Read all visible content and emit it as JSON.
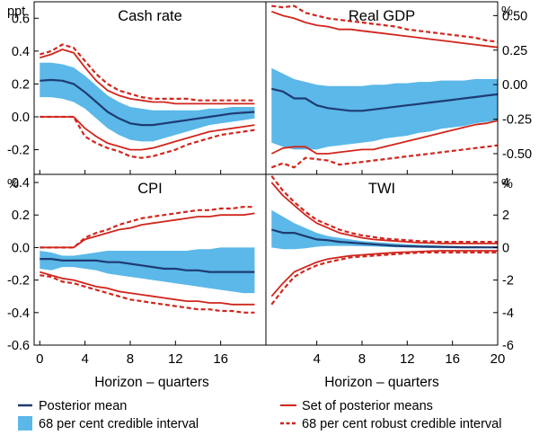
{
  "colors": {
    "posterior_mean": "#1f3b73",
    "credible_fill": "#5bb8e8",
    "posterior_means_set": "#d0261d",
    "robust_interval": "#d0261d",
    "axis": "#000000"
  },
  "xlabel": "Horizon – quarters",
  "legend": {
    "posterior_mean": "Posterior mean",
    "credible_interval": "68 per cent credible interval",
    "posterior_means_set": "Set of posterior means",
    "robust_interval": "68 per cent robust credible interval"
  },
  "chart_data": [
    {
      "type": "line",
      "title": "Cash rate",
      "unit": "ppt",
      "unit_side": "left",
      "ylim": [
        -0.35,
        0.7
      ],
      "yticks": [
        -0.2,
        0.0,
        0.2,
        0.4,
        0.6
      ],
      "yticklabels": [
        "-0.2",
        "0.0",
        "0.2",
        "0.4",
        "0.6"
      ],
      "xlim": [
        -0.5,
        20
      ],
      "xticks": [
        0,
        4,
        8,
        12,
        16
      ],
      "xticklabels": [],
      "x": [
        0,
        1,
        2,
        3,
        4,
        5,
        6,
        7,
        8,
        9,
        10,
        11,
        12,
        13,
        14,
        15,
        16,
        17,
        18,
        19
      ],
      "series": [
        {
          "role": "posterior_mean",
          "name": "Posterior mean",
          "values": [
            0.22,
            0.225,
            0.22,
            0.2,
            0.15,
            0.09,
            0.03,
            -0.01,
            -0.04,
            -0.05,
            -0.05,
            -0.04,
            -0.03,
            -0.02,
            -0.01,
            0.0,
            0.01,
            0.02,
            0.025,
            0.03
          ]
        },
        {
          "role": "credible_upper",
          "name": "68 per cent credible interval",
          "values": [
            0.33,
            0.33,
            0.32,
            0.3,
            0.25,
            0.19,
            0.13,
            0.09,
            0.06,
            0.05,
            0.04,
            0.04,
            0.04,
            0.04,
            0.04,
            0.05,
            0.05,
            0.06,
            0.06,
            0.06
          ]
        },
        {
          "role": "credible_lower",
          "values": [
            0.12,
            0.12,
            0.11,
            0.09,
            0.05,
            -0.01,
            -0.07,
            -0.11,
            -0.14,
            -0.15,
            -0.15,
            -0.13,
            -0.11,
            -0.09,
            -0.07,
            -0.05,
            -0.04,
            -0.03,
            -0.02,
            -0.01
          ]
        },
        {
          "role": "means_upper",
          "name": "Set of posterior means",
          "values": [
            0.36,
            0.38,
            0.41,
            0.39,
            0.3,
            0.22,
            0.16,
            0.13,
            0.11,
            0.1,
            0.09,
            0.09,
            0.08,
            0.08,
            0.08,
            0.08,
            0.08,
            0.08,
            0.08,
            0.08
          ]
        },
        {
          "role": "means_lower",
          "values": [
            0.0,
            0.0,
            0.0,
            0.0,
            -0.07,
            -0.12,
            -0.16,
            -0.18,
            -0.2,
            -0.2,
            -0.19,
            -0.17,
            -0.15,
            -0.13,
            -0.11,
            -0.09,
            -0.08,
            -0.07,
            -0.06,
            -0.05
          ]
        },
        {
          "role": "robust_upper",
          "name": "68 per cent robust credible interval",
          "values": [
            0.38,
            0.4,
            0.44,
            0.42,
            0.34,
            0.26,
            0.2,
            0.16,
            0.14,
            0.12,
            0.11,
            0.11,
            0.11,
            0.11,
            0.1,
            0.1,
            0.1,
            0.1,
            0.1,
            0.1
          ]
        },
        {
          "role": "robust_lower",
          "values": [
            0.0,
            0.0,
            0.0,
            0.0,
            -0.12,
            -0.16,
            -0.19,
            -0.21,
            -0.24,
            -0.25,
            -0.24,
            -0.22,
            -0.2,
            -0.17,
            -0.15,
            -0.13,
            -0.11,
            -0.1,
            -0.09,
            -0.08
          ]
        }
      ]
    },
    {
      "type": "line",
      "title": "Real GDP",
      "unit": "%",
      "unit_side": "right",
      "ylim": [
        -0.65,
        0.6
      ],
      "yticks": [
        -0.5,
        -0.25,
        0.0,
        0.25,
        0.5
      ],
      "yticklabels": [
        "-0.50",
        "-0.25",
        "0.00",
        "0.25",
        "0.50"
      ],
      "xlim": [
        -0.5,
        20
      ],
      "xticks": [
        4,
        8,
        12,
        16,
        20
      ],
      "xticklabels": [],
      "x": [
        0,
        1,
        2,
        3,
        4,
        5,
        6,
        7,
        8,
        9,
        10,
        11,
        12,
        13,
        14,
        15,
        16,
        17,
        18,
        19,
        20
      ],
      "series": [
        {
          "role": "posterior_mean",
          "name": "Posterior mean",
          "values": [
            -0.03,
            -0.05,
            -0.1,
            -0.1,
            -0.15,
            -0.17,
            -0.18,
            -0.19,
            -0.19,
            -0.18,
            -0.17,
            -0.16,
            -0.15,
            -0.14,
            -0.13,
            -0.12,
            -0.11,
            -0.1,
            -0.09,
            -0.08,
            -0.07
          ]
        },
        {
          "role": "credible_upper",
          "name": "68 per cent credible interval",
          "values": [
            0.12,
            0.08,
            0.04,
            0.02,
            0.0,
            -0.01,
            -0.01,
            -0.01,
            -0.01,
            0.0,
            0.0,
            0.01,
            0.01,
            0.02,
            0.02,
            0.03,
            0.03,
            0.03,
            0.04,
            0.04,
            0.04
          ]
        },
        {
          "role": "credible_lower",
          "values": [
            -0.42,
            -0.45,
            -0.47,
            -0.47,
            -0.47,
            -0.45,
            -0.44,
            -0.43,
            -0.42,
            -0.41,
            -0.39,
            -0.38,
            -0.37,
            -0.35,
            -0.34,
            -0.32,
            -0.31,
            -0.3,
            -0.28,
            -0.27,
            -0.26
          ]
        },
        {
          "role": "means_upper",
          "name": "Set of posterior means",
          "values": [
            0.53,
            0.5,
            0.48,
            0.45,
            0.43,
            0.42,
            0.4,
            0.4,
            0.39,
            0.38,
            0.37,
            0.36,
            0.35,
            0.34,
            0.33,
            0.32,
            0.31,
            0.3,
            0.29,
            0.28,
            0.27
          ]
        },
        {
          "role": "means_lower",
          "values": [
            -0.5,
            -0.46,
            -0.45,
            -0.45,
            -0.5,
            -0.5,
            -0.49,
            -0.48,
            -0.47,
            -0.47,
            -0.45,
            -0.43,
            -0.41,
            -0.39,
            -0.37,
            -0.35,
            -0.33,
            -0.31,
            -0.29,
            -0.28,
            -0.26
          ]
        },
        {
          "role": "robust_upper",
          "name": "68 per cent robust credible interval",
          "values": [
            0.57,
            0.56,
            0.57,
            0.52,
            0.5,
            0.48,
            0.47,
            0.46,
            0.45,
            0.44,
            0.43,
            0.42,
            0.4,
            0.39,
            0.38,
            0.37,
            0.36,
            0.35,
            0.34,
            0.32,
            0.31
          ]
        },
        {
          "role": "robust_lower",
          "values": [
            -0.6,
            -0.57,
            -0.6,
            -0.53,
            -0.54,
            -0.55,
            -0.58,
            -0.57,
            -0.56,
            -0.55,
            -0.54,
            -0.53,
            -0.52,
            -0.51,
            -0.5,
            -0.49,
            -0.48,
            -0.47,
            -0.46,
            -0.45,
            -0.44
          ]
        }
      ]
    },
    {
      "type": "line",
      "title": "CPI",
      "unit": "%",
      "unit_side": "left",
      "ylim": [
        -0.6,
        0.45
      ],
      "yticks": [
        -0.6,
        -0.4,
        -0.2,
        0.0,
        0.2,
        0.4
      ],
      "yticklabels": [
        "-0.6",
        "-0.4",
        "-0.2",
        "0.0",
        "0.2",
        "0.4"
      ],
      "xlim": [
        -0.5,
        20
      ],
      "xticks": [
        0,
        4,
        8,
        12,
        16
      ],
      "xticklabels": [
        "0",
        "4",
        "8",
        "12",
        "16"
      ],
      "x": [
        0,
        1,
        2,
        3,
        4,
        5,
        6,
        7,
        8,
        9,
        10,
        11,
        12,
        13,
        14,
        15,
        16,
        17,
        18,
        19
      ],
      "series": [
        {
          "role": "posterior_mean",
          "name": "Posterior mean",
          "values": [
            -0.07,
            -0.07,
            -0.08,
            -0.08,
            -0.08,
            -0.08,
            -0.09,
            -0.09,
            -0.1,
            -0.11,
            -0.12,
            -0.13,
            -0.13,
            -0.14,
            -0.14,
            -0.15,
            -0.15,
            -0.15,
            -0.15,
            -0.15
          ]
        },
        {
          "role": "credible_upper",
          "name": "68 per cent credible interval",
          "values": [
            -0.02,
            -0.03,
            -0.05,
            -0.05,
            -0.04,
            -0.03,
            -0.02,
            -0.02,
            -0.02,
            -0.02,
            -0.02,
            -0.02,
            -0.02,
            -0.02,
            -0.01,
            -0.01,
            -0.0,
            -0.0,
            -0.0,
            0.0
          ]
        },
        {
          "role": "credible_lower",
          "values": [
            -0.13,
            -0.14,
            -0.12,
            -0.12,
            -0.13,
            -0.14,
            -0.16,
            -0.17,
            -0.18,
            -0.19,
            -0.2,
            -0.21,
            -0.22,
            -0.23,
            -0.24,
            -0.25,
            -0.26,
            -0.27,
            -0.28,
            -0.28
          ]
        },
        {
          "role": "means_upper",
          "name": "Set of posterior means",
          "values": [
            0.0,
            0.0,
            0.0,
            0.0,
            0.05,
            0.07,
            0.09,
            0.11,
            0.12,
            0.14,
            0.15,
            0.16,
            0.17,
            0.18,
            0.19,
            0.19,
            0.2,
            0.2,
            0.2,
            0.21
          ]
        },
        {
          "role": "means_lower",
          "values": [
            -0.15,
            -0.17,
            -0.19,
            -0.2,
            -0.22,
            -0.24,
            -0.25,
            -0.27,
            -0.28,
            -0.29,
            -0.3,
            -0.31,
            -0.32,
            -0.33,
            -0.33,
            -0.34,
            -0.34,
            -0.35,
            -0.35,
            -0.35
          ]
        },
        {
          "role": "robust_upper",
          "name": "68 per cent robust credible interval",
          "values": [
            0.0,
            0.0,
            0.0,
            0.0,
            0.06,
            0.09,
            0.11,
            0.14,
            0.16,
            0.18,
            0.19,
            0.2,
            0.21,
            0.22,
            0.23,
            0.23,
            0.24,
            0.24,
            0.25,
            0.25
          ]
        },
        {
          "role": "robust_lower",
          "values": [
            -0.17,
            -0.18,
            -0.21,
            -0.22,
            -0.24,
            -0.26,
            -0.28,
            -0.3,
            -0.32,
            -0.33,
            -0.34,
            -0.35,
            -0.36,
            -0.37,
            -0.38,
            -0.38,
            -0.39,
            -0.39,
            -0.4,
            -0.4
          ]
        }
      ]
    },
    {
      "type": "line",
      "title": "TWI",
      "unit": "%",
      "unit_side": "right",
      "ylim": [
        -6,
        4.5
      ],
      "yticks": [
        -6,
        -4,
        -2,
        0,
        2,
        4
      ],
      "yticklabels": [
        "-6",
        "-4",
        "-2",
        "0",
        "2",
        "4"
      ],
      "xlim": [
        -0.5,
        20
      ],
      "xticks": [
        4,
        8,
        12,
        16,
        20
      ],
      "xticklabels": [
        "4",
        "8",
        "12",
        "16",
        "20"
      ],
      "x": [
        0,
        1,
        2,
        3,
        4,
        5,
        6,
        7,
        8,
        9,
        10,
        11,
        12,
        13,
        14,
        15,
        16,
        17,
        18,
        19,
        20
      ],
      "series": [
        {
          "role": "posterior_mean",
          "name": "Posterior mean",
          "values": [
            1.1,
            0.9,
            0.9,
            0.7,
            0.5,
            0.45,
            0.35,
            0.3,
            0.25,
            0.2,
            0.15,
            0.1,
            0.08,
            0.06,
            0.05,
            0.04,
            0.03,
            0.02,
            0.02,
            0.01,
            0.01
          ]
        },
        {
          "role": "credible_upper",
          "name": "68 per cent credible interval",
          "values": [
            2.3,
            1.9,
            1.5,
            1.2,
            0.9,
            0.7,
            0.6,
            0.5,
            0.4,
            0.35,
            0.3,
            0.25,
            0.2,
            0.18,
            0.15,
            0.12,
            0.1,
            0.08,
            0.06,
            0.05,
            0.04
          ]
        },
        {
          "role": "credible_lower",
          "values": [
            0.0,
            -0.1,
            -0.1,
            -0.05,
            0.05,
            0.1,
            0.1,
            0.1,
            0.08,
            0.06,
            0.04,
            0.02,
            0.0,
            -0.02,
            -0.03,
            -0.04,
            -0.05,
            -0.05,
            -0.05,
            -0.05,
            -0.05
          ]
        },
        {
          "role": "means_upper",
          "name": "Set of posterior means",
          "values": [
            4.0,
            3.2,
            2.6,
            2.0,
            1.5,
            1.2,
            0.9,
            0.75,
            0.6,
            0.5,
            0.45,
            0.4,
            0.35,
            0.3,
            0.28,
            0.25,
            0.25,
            0.25,
            0.25,
            0.25,
            0.25
          ]
        },
        {
          "role": "means_lower",
          "values": [
            -3.0,
            -2.2,
            -1.5,
            -1.2,
            -0.9,
            -0.7,
            -0.6,
            -0.5,
            -0.45,
            -0.4,
            -0.35,
            -0.3,
            -0.28,
            -0.25,
            -0.22,
            -0.2,
            -0.2,
            -0.2,
            -0.2,
            -0.2,
            -0.2
          ]
        },
        {
          "role": "robust_upper",
          "name": "68 per cent robust credible interval",
          "values": [
            4.4,
            3.5,
            2.8,
            2.2,
            1.7,
            1.4,
            1.1,
            0.9,
            0.75,
            0.65,
            0.55,
            0.5,
            0.45,
            0.4,
            0.38,
            0.35,
            0.35,
            0.35,
            0.35,
            0.35,
            0.35
          ]
        },
        {
          "role": "robust_lower",
          "values": [
            -3.5,
            -2.6,
            -1.8,
            -1.4,
            -1.1,
            -0.9,
            -0.75,
            -0.6,
            -0.55,
            -0.5,
            -0.45,
            -0.4,
            -0.35,
            -0.32,
            -0.3,
            -0.3,
            -0.3,
            -0.3,
            -0.3,
            -0.3,
            -0.3
          ]
        }
      ]
    }
  ]
}
